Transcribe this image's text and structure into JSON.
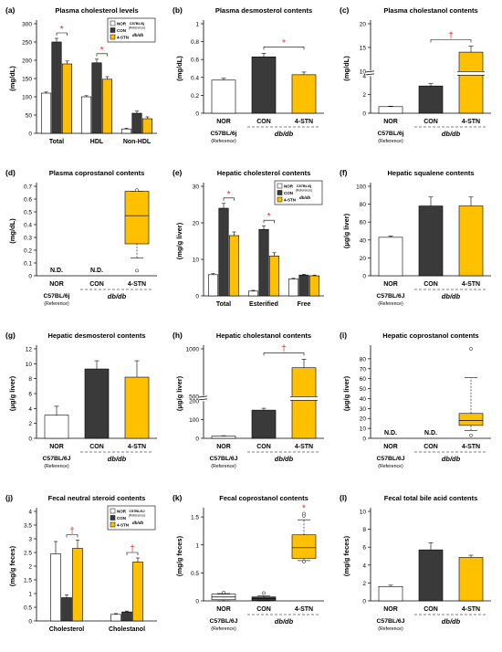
{
  "colors": {
    "NOR": "#ffffff",
    "CON": "#3a3a3a",
    "4-STN": "#ffc000",
    "sig": "#e8262b",
    "axis": "#000000"
  },
  "panels": [
    {
      "letter": "(a)",
      "title": "Plasma cholesterol levels",
      "ylabel": "(mg/dL)",
      "chart_data": {
        "type": "bar",
        "categories": [
          "Total",
          "HDL",
          "Non-HDL"
        ],
        "ylim": [
          0,
          300
        ],
        "yticks": [
          0,
          50,
          100,
          150,
          200,
          250,
          300
        ],
        "series": [
          {
            "name": "NOR",
            "values": [
              110,
              100,
              12
            ],
            "err": [
              3,
              3,
              2
            ]
          },
          {
            "name": "CON",
            "values": [
              250,
              193,
              55
            ],
            "err": [
              10,
              10,
              6
            ]
          },
          {
            "name": "4-STN",
            "values": [
              190,
              148,
              40
            ],
            "err": [
              8,
              7,
              5
            ]
          }
        ],
        "sig": [
          {
            "cat": 0,
            "from": "CON",
            "to": "4-STN",
            "mark": "*"
          },
          {
            "cat": 1,
            "from": "CON",
            "to": "4-STN",
            "mark": "*"
          }
        ],
        "legend": {
          "position": "top-right",
          "group_note": [
            "C57BL/6j",
            "(Reference)"
          ],
          "strain": "db/db"
        }
      }
    },
    {
      "letter": "(b)",
      "title": "Plasma desmosterol contents",
      "ylabel": "(mg/dL)",
      "chart_data": {
        "type": "bar",
        "categories": [
          "NOR",
          "CON",
          "4-STN"
        ],
        "values": [
          0.37,
          0.63,
          0.43
        ],
        "err": [
          0.02,
          0.04,
          0.03
        ],
        "ylim": [
          0,
          1.0
        ],
        "yticks": [
          0,
          0.2,
          0.4,
          0.6,
          0.8,
          1.0
        ],
        "sig": [
          {
            "from": "CON",
            "to": "4-STN",
            "mark": "*"
          }
        ],
        "group_labels": {
          "reference": "C57BL/6j",
          "reference_note": "(Reference)",
          "strain": "db/db"
        }
      }
    },
    {
      "letter": "(c)",
      "title": "Plasma cholestanol contents",
      "ylabel": "(mg/dL)",
      "chart_data": {
        "type": "bar",
        "categories": [
          "NOR",
          "CON",
          "4-STN"
        ],
        "values": [
          0.7,
          2.9,
          14
        ],
        "err": [
          0.05,
          0.25,
          1.3
        ],
        "ylim": [
          0,
          20
        ],
        "yticks": [
          0,
          2,
          4,
          10,
          15,
          20
        ],
        "axis_break": [
          4,
          10
        ],
        "sig": [
          {
            "from": "CON",
            "to": "4-STN",
            "mark": "†"
          }
        ],
        "group_labels": {
          "reference": "C57BL/6j",
          "reference_note": "(Reference)",
          "strain": "db/db"
        }
      }
    },
    {
      "letter": "(d)",
      "title": "Plasma coprostanol contents",
      "ylabel": "(mg/dL)",
      "chart_data": {
        "type": "box",
        "categories": [
          "NOR",
          "CON",
          "4-STN"
        ],
        "ylim": [
          0,
          0.7
        ],
        "yticks": [
          0,
          0.1,
          0.2,
          0.3,
          0.4,
          0.5,
          0.6,
          0.7
        ],
        "nd": [
          "N.D.",
          "N.D.",
          null
        ],
        "boxes": [
          null,
          null,
          {
            "q1": 0.25,
            "median": 0.47,
            "q3": 0.66,
            "whisker_low": 0.14,
            "whisker_high": 0.66,
            "outliers": [
              0.04,
              0.67
            ]
          }
        ],
        "group_labels": {
          "reference": "C57BL/6j",
          "reference_note": "(Reference)",
          "strain": "db/db"
        }
      }
    },
    {
      "letter": "(e)",
      "title": "Hepatic  cholesterol contents",
      "ylabel": "(mg/g liver)",
      "chart_data": {
        "type": "bar",
        "categories": [
          "Total",
          "Esterified",
          "Free"
        ],
        "ylim": [
          0,
          30
        ],
        "yticks": [
          0,
          10,
          20,
          30
        ],
        "series": [
          {
            "name": "NOR",
            "values": [
              5.8,
              1.3,
              4.6
            ],
            "err": [
              0.3,
              0.2,
              0.2
            ]
          },
          {
            "name": "CON",
            "values": [
              24,
              18.2,
              5.7
            ],
            "err": [
              1.3,
              1.0,
              0.2
            ]
          },
          {
            "name": "4-STN",
            "values": [
              16.5,
              10.9,
              5.5
            ],
            "err": [
              1.0,
              0.9,
              0.2
            ]
          }
        ],
        "sig": [
          {
            "cat": 0,
            "from": "CON",
            "to": "4-STN",
            "mark": "*"
          },
          {
            "cat": 1,
            "from": "CON",
            "to": "4-STN",
            "mark": "*"
          }
        ],
        "legend": {
          "position": "top-right",
          "group_note": [
            "C57BL/6j",
            "(Reference)"
          ],
          "strain": "db/db"
        }
      }
    },
    {
      "letter": "(f)",
      "title": "Hepatic squalene contents",
      "ylabel": "(μg/g liver)",
      "chart_data": {
        "type": "bar",
        "categories": [
          "NOR",
          "CON",
          "4-STN"
        ],
        "values": [
          43,
          78,
          78
        ],
        "err": [
          1.5,
          10,
          10
        ],
        "ylim": [
          0,
          100
        ],
        "yticks": [
          0,
          20,
          40,
          60,
          80,
          100
        ],
        "sig": [],
        "group_labels": {
          "reference": "C57BL/6J",
          "reference_note": "(Reference)",
          "strain": "db/db"
        }
      }
    },
    {
      "letter": "(g)",
      "title": "Hepatic desmosterol contents",
      "ylabel": "(μg/g liver)",
      "chart_data": {
        "type": "bar",
        "categories": [
          "NOR",
          "CON",
          "4-STN"
        ],
        "values": [
          3.1,
          9.3,
          8.2
        ],
        "err": [
          1.2,
          1.1,
          2.2
        ],
        "ylim": [
          0,
          12
        ],
        "yticks": [
          0,
          2,
          4,
          6,
          8,
          10,
          12
        ],
        "sig": [],
        "group_labels": {
          "reference": "C57BL/6J",
          "reference_note": "(Reference)",
          "strain": "db/db"
        }
      }
    },
    {
      "letter": "(h)",
      "title": "Hepatic cholestanol contents",
      "ylabel": "(μg/g liver)",
      "chart_data": {
        "type": "bar",
        "categories": [
          "NOR",
          "CON",
          "4-STN"
        ],
        "values": [
          12,
          150,
          800
        ],
        "err": [
          2,
          10,
          90
        ],
        "ylim": [
          0,
          1000
        ],
        "yticks": [
          0,
          100,
          200,
          500,
          1000
        ],
        "axis_break": [
          200,
          500
        ],
        "sig": [
          {
            "from": "CON",
            "to": "4-STN",
            "mark": "†"
          }
        ],
        "group_labels": {
          "reference": "C57BL/6J",
          "reference_note": "(Reference)",
          "strain": "db/db"
        }
      }
    },
    {
      "letter": "(i)",
      "title": "Hepatic coprostanol contents",
      "ylabel": "(μg/g liver)",
      "chart_data": {
        "type": "box",
        "categories": [
          "NOR",
          "CON",
          "4-STN"
        ],
        "ylim": [
          0,
          90
        ],
        "yticks": [
          0,
          10,
          20,
          30,
          40,
          50,
          60,
          70,
          80
        ],
        "nd": [
          "N.D.",
          "N.D.",
          null
        ],
        "boxes": [
          null,
          null,
          {
            "q1": 13,
            "median": 18,
            "q3": 25,
            "whisker_low": 8,
            "whisker_high": 61,
            "outliers": [
              3,
              90
            ]
          }
        ],
        "group_labels": {
          "reference": "C57BL/6J",
          "reference_note": "(Reference)",
          "strain": "db/db"
        }
      }
    },
    {
      "letter": "(j)",
      "title": "Fecal neutral steroid contents",
      "ylabel": "(mg/g feces)",
      "chart_data": {
        "type": "bar",
        "categories": [
          "Cholesterol",
          "Cholestanol"
        ],
        "ylim": [
          0,
          4
        ],
        "yticks": [
          0,
          0.5,
          1,
          1.5,
          2,
          2.5,
          3,
          3.5,
          4
        ],
        "series": [
          {
            "name": "NOR",
            "values": [
              2.45,
              0.24
            ],
            "err": [
              0.45,
              0.03
            ]
          },
          {
            "name": "CON",
            "values": [
              0.85,
              0.33
            ],
            "err": [
              0.1,
              0.03
            ]
          },
          {
            "name": "4-STN",
            "values": [
              2.65,
              2.15
            ],
            "err": [
              0.3,
              0.15
            ]
          }
        ],
        "sig": [
          {
            "cat": 0,
            "from": "CON",
            "to": "4-STN",
            "mark": "†"
          },
          {
            "cat": 1,
            "from": "CON",
            "to": "4-STN",
            "mark": "†"
          }
        ],
        "legend": {
          "position": "top-right",
          "group_note": [
            "C57BL/6J",
            "(Reference)"
          ],
          "strain": "db/db"
        }
      }
    },
    {
      "letter": "(k)",
      "title": "Fecal coprostanol contents",
      "ylabel": "(mg/g feces)",
      "chart_data": {
        "type": "box",
        "categories": [
          "NOR",
          "CON",
          "4-STN"
        ],
        "ylim": [
          0,
          1.6
        ],
        "yticks": [
          0,
          0.5,
          1,
          1.5
        ],
        "nd": [
          null,
          null,
          null
        ],
        "boxes": [
          {
            "q1": 0.02,
            "median": 0.07,
            "q3": 0.12,
            "whisker_low": 0.0,
            "whisker_high": 0.13,
            "outliers": [
              0.15
            ]
          },
          {
            "q1": 0.01,
            "median": 0.04,
            "q3": 0.07,
            "whisker_low": 0.0,
            "whisker_high": 0.09,
            "outliers": [
              0.14
            ]
          },
          {
            "q1": 0.76,
            "median": 0.95,
            "q3": 1.18,
            "whisker_low": 0.72,
            "whisker_high": 1.45,
            "outliers": [
              0.7,
              1.52,
              1.56
            ]
          }
        ],
        "sig": [
          {
            "cat": 2,
            "mark": "*"
          }
        ],
        "group_labels": {
          "reference": "C57BL/6J",
          "reference_note": "(Reference)",
          "strain": "db/db"
        }
      }
    },
    {
      "letter": "(l)",
      "title": "Fecal total bile acid contents",
      "ylabel": "(mg/g feces)",
      "chart_data": {
        "type": "bar",
        "categories": [
          "NOR",
          "CON",
          "4-STN"
        ],
        "values": [
          1.6,
          5.7,
          4.85
        ],
        "err": [
          0.15,
          0.8,
          0.25
        ],
        "ylim": [
          0,
          10
        ],
        "yticks": [
          0,
          2,
          4,
          6,
          8,
          10
        ],
        "sig": [],
        "group_labels": {
          "reference": "C57BL/6J",
          "reference_note": "(Reference)",
          "strain": "db/db"
        }
      }
    }
  ]
}
